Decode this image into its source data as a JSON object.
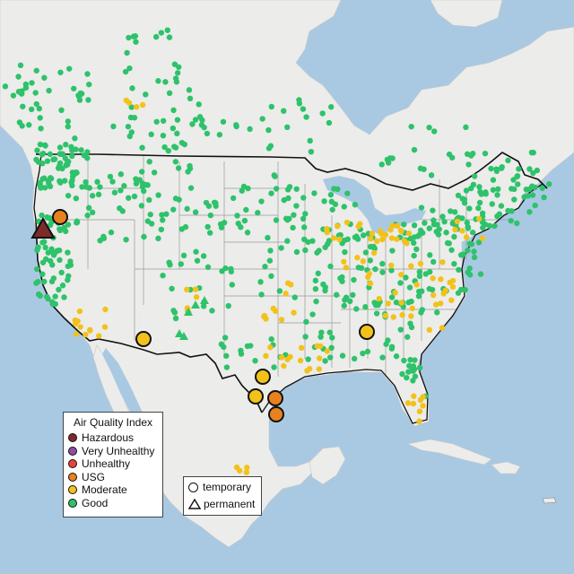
{
  "legend": {
    "title": "Air Quality Index",
    "categories": [
      {
        "label": "Hazardous",
        "color": "#7e2a2a"
      },
      {
        "label": "Very Unhealthy",
        "color": "#8e4fa0"
      },
      {
        "label": "Unhealthy",
        "color": "#e8443a"
      },
      {
        "label": "USG",
        "color": "#e8821e"
      },
      {
        "label": "Moderate",
        "color": "#f2c21a"
      },
      {
        "label": "Good",
        "color": "#2ec26b"
      }
    ],
    "shapes": [
      {
        "label": "temporary",
        "shape": "circle"
      },
      {
        "label": "permanent",
        "shape": "triangle"
      }
    ]
  },
  "colors": {
    "ocean": "#a9c9e3",
    "land": "#ececea",
    "borders": "#111111",
    "state_lines": "#9a9a9a"
  }
}
